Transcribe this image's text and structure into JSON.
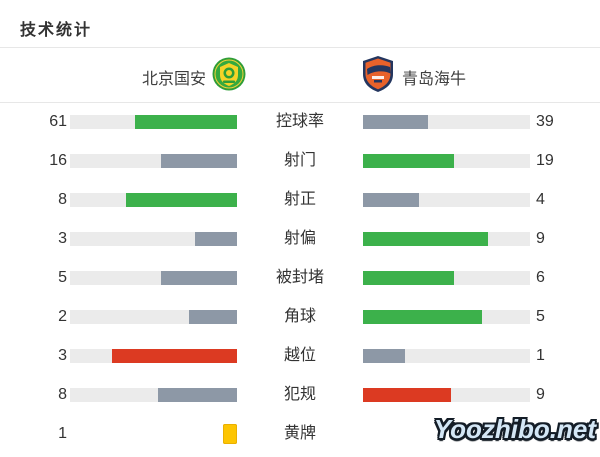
{
  "title": "技术统计",
  "teams": {
    "home": {
      "name": "北京国安",
      "logo": "beijing-guoan-crest"
    },
    "away": {
      "name": "青岛海牛",
      "logo": "qingdao-hainiu-crest"
    }
  },
  "colors": {
    "green": "#3cb14b",
    "gray": "#8d98a6",
    "red": "#dc3a22",
    "yellow": "#fdc502",
    "track": "#ebebeb"
  },
  "watermark": "Yoozhibo.net",
  "chart_data": {
    "type": "bar",
    "layout": "mirrored-horizontal-bars, labels centered, home on left, away on right",
    "teams": [
      "北京国安",
      "青岛海牛"
    ],
    "rows": [
      {
        "label": "控球率",
        "home": 61,
        "away": 39,
        "home_color": "green",
        "away_color": "gray",
        "style": "bars"
      },
      {
        "label": "射门",
        "home": 16,
        "away": 19,
        "home_color": "gray",
        "away_color": "green",
        "style": "bars"
      },
      {
        "label": "射正",
        "home": 8,
        "away": 4,
        "home_color": "green",
        "away_color": "gray",
        "style": "bars"
      },
      {
        "label": "射偏",
        "home": 3,
        "away": 9,
        "home_color": "gray",
        "away_color": "green",
        "style": "bars"
      },
      {
        "label": "被封堵",
        "home": 5,
        "away": 6,
        "home_color": "gray",
        "away_color": "green",
        "style": "bars"
      },
      {
        "label": "角球",
        "home": 2,
        "away": 5,
        "home_color": "gray",
        "away_color": "green",
        "style": "bars"
      },
      {
        "label": "越位",
        "home": 3,
        "away": 1,
        "home_color": "red",
        "away_color": "gray",
        "style": "bars"
      },
      {
        "label": "犯规",
        "home": 8,
        "away": 9,
        "home_color": "gray",
        "away_color": "red",
        "style": "bars"
      },
      {
        "label": "黄牌",
        "home": 1,
        "away": 0,
        "home_color": "yellow",
        "away_color": "yellow",
        "style": "cards"
      }
    ]
  }
}
